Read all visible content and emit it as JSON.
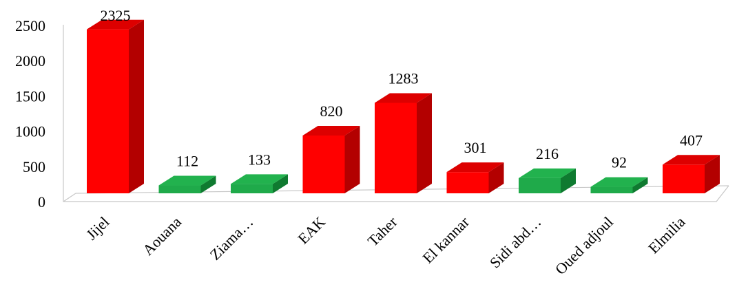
{
  "chart_data": {
    "type": "bar",
    "title": "",
    "xlabel": "",
    "ylabel": "",
    "ylim": [
      0,
      2500
    ],
    "yticks": [
      0,
      500,
      1000,
      1500,
      2000,
      2500
    ],
    "categories": [
      "Jijel",
      "Aouana",
      "Ziama…",
      "EAK",
      "Taher",
      "El kannar",
      "Sidi abd…",
      "Oued adjoul",
      "Elmilia"
    ],
    "values": [
      2325,
      112,
      133,
      820,
      1283,
      301,
      216,
      92,
      407
    ],
    "bar_colors": [
      "red",
      "green",
      "green",
      "red",
      "red",
      "red",
      "green",
      "green",
      "red"
    ],
    "grid": false,
    "legend": "none",
    "style": "3d-column"
  },
  "colors": {
    "red": {
      "front": "#ff0000",
      "side": "#b30000",
      "top": "#dd0000"
    },
    "green": {
      "front": "#1faa4a",
      "side": "#0f7a30",
      "top": "#22b24e"
    }
  }
}
